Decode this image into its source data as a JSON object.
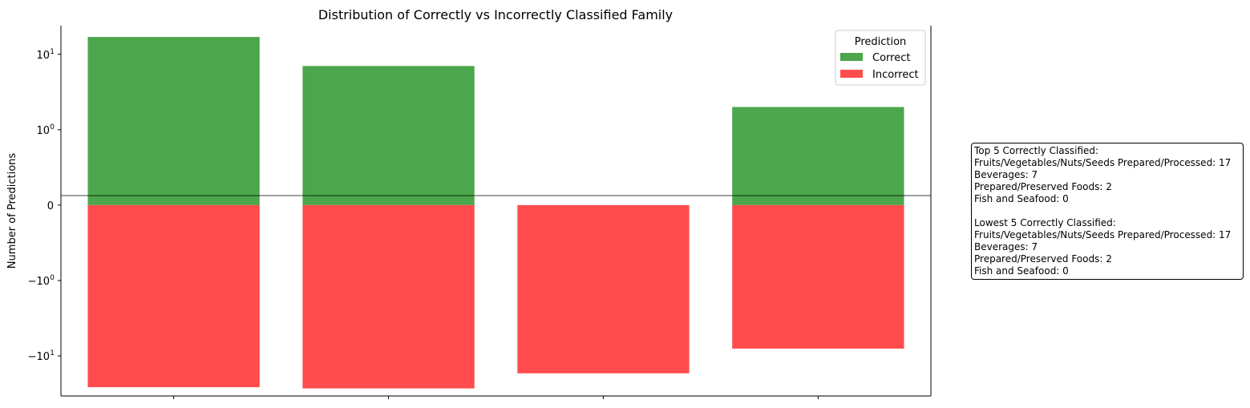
{
  "chart_data": {
    "type": "bar",
    "title": "Distribution of Correctly vs Incorrectly Classified Family",
    "xlabel": "",
    "ylabel": "Number of Predictions",
    "yscale": "symlog",
    "ylim": [
      -34,
      24
    ],
    "yticks": [
      {
        "value": 10,
        "label": "10",
        "exp": "1"
      },
      {
        "value": 1,
        "label": "10",
        "exp": "0"
      },
      {
        "value": 0,
        "label": "0",
        "exp": ""
      },
      {
        "value": -1,
        "label": "−10",
        "exp": "0"
      },
      {
        "value": -10,
        "label": "−10",
        "exp": "1"
      }
    ],
    "categories": [
      "",
      "",
      "",
      ""
    ],
    "series": [
      {
        "name": "Correct",
        "color": "#4ca64c",
        "values": [
          17,
          7,
          0,
          2
        ]
      },
      {
        "name": "Incorrect",
        "color": "#ff4c4c",
        "values": [
          -26,
          -27,
          -17,
          -8
        ]
      }
    ],
    "legend": {
      "title": "Prediction",
      "placement": "top-right"
    },
    "zero_line": true,
    "grid": false
  },
  "summary": {
    "lines": [
      "Top 5 Correctly Classified:",
      "Fruits/Vegetables/Nuts/Seeds Prepared/Processed: 17",
      "Beverages: 7",
      "Prepared/Preserved Foods: 2",
      "Fish and Seafood: 0",
      "",
      "Lowest 5 Correctly Classified:",
      "Fruits/Vegetables/Nuts/Seeds Prepared/Processed: 17",
      "Beverages: 7",
      "Prepared/Preserved Foods: 2",
      "Fish and Seafood: 0"
    ]
  }
}
